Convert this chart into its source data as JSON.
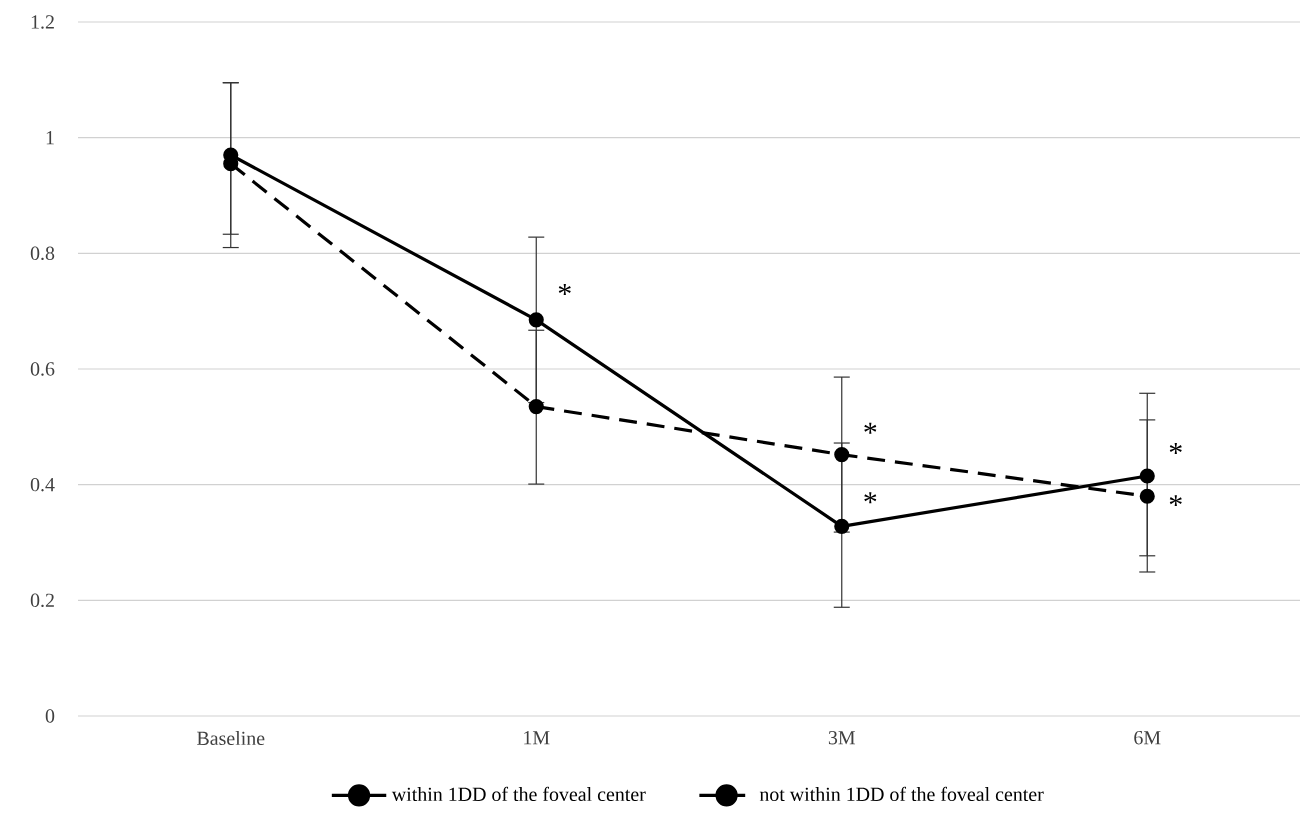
{
  "chart_data": {
    "type": "line",
    "categories": [
      "Baseline",
      "1M",
      "3M",
      "6M"
    ],
    "series": [
      {
        "name": "within 1DD of the foveal center",
        "color": "#000000",
        "line_style": "solid",
        "values": [
          0.97,
          0.685,
          0.328,
          0.415
        ],
        "errors": [
          [
            0.833,
            1.095
          ],
          [
            0.542,
            0.828
          ],
          [
            0.188,
            0.472
          ],
          [
            0.277,
            0.558
          ]
        ]
      },
      {
        "name": "not within 1DD of the foveal center",
        "color": "#000000",
        "line_style": "dashed",
        "values": [
          0.955,
          0.535,
          0.452,
          0.38
        ],
        "errors": [
          [
            0.81,
            1.095
          ],
          [
            0.401,
            0.667
          ],
          [
            0.318,
            0.586
          ],
          [
            0.249,
            0.512
          ]
        ]
      }
    ],
    "ylim": [
      0,
      1.2
    ],
    "yticks": [
      0,
      0.2,
      0.4,
      0.6,
      0.8,
      1,
      1.2
    ],
    "grid": "y",
    "legend": "bottom",
    "marker": "circle",
    "annotations": [
      {
        "text": "*",
        "x": "1M",
        "y": 0.73
      },
      {
        "text": "*",
        "x": "3M",
        "y": 0.49
      },
      {
        "text": "*",
        "x": "3M",
        "y": 0.37
      },
      {
        "text": "*",
        "x": "6M",
        "y": 0.455
      },
      {
        "text": "*",
        "x": "6M",
        "y": 0.365
      }
    ]
  }
}
